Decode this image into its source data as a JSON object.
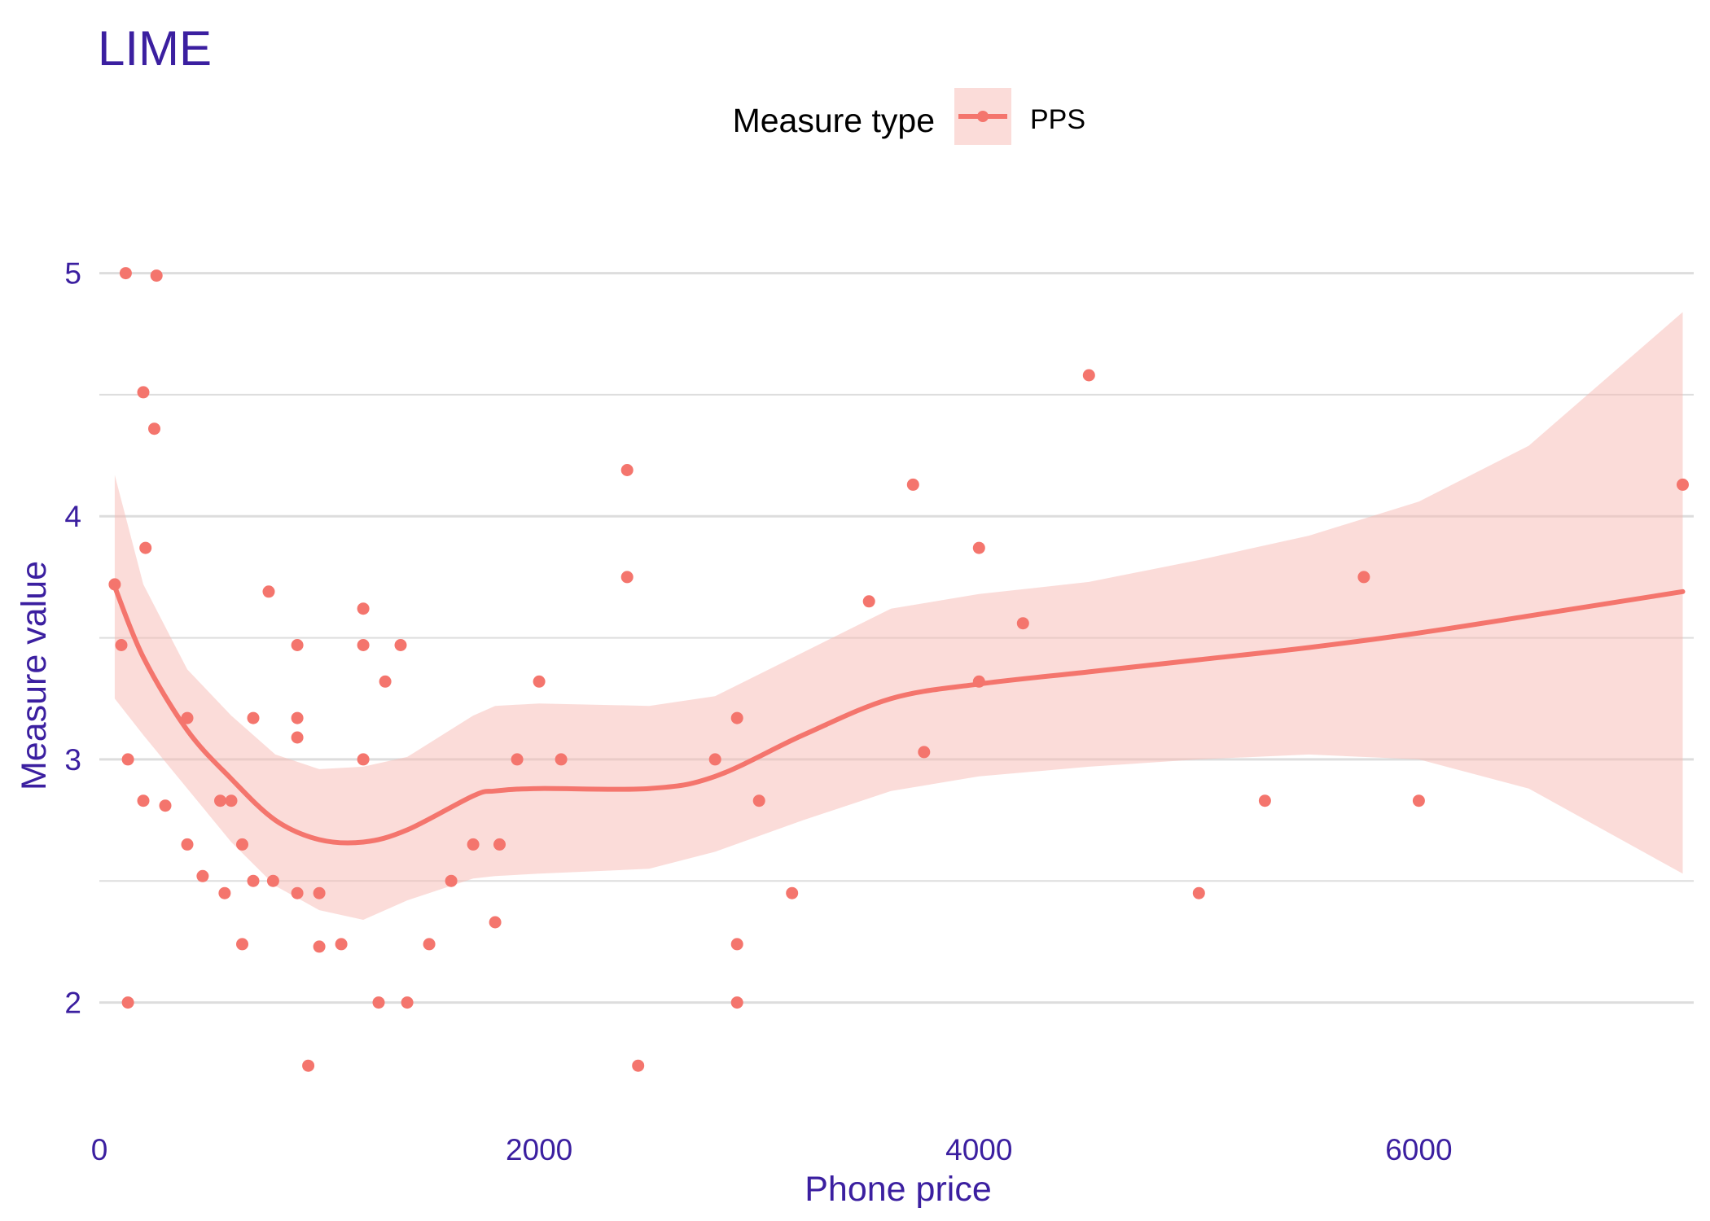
{
  "chart_data": {
    "type": "scatter",
    "title": "LIME",
    "xlabel": "Phone price",
    "ylabel": "Measure value",
    "xlim": [
      0,
      7250
    ],
    "ylim": [
      1.57,
      5.32
    ],
    "x_ticks": [
      0,
      2000,
      4000,
      6000
    ],
    "y_ticks": [
      2,
      3,
      4,
      5
    ],
    "grid": true,
    "legend": {
      "title": "Measure type",
      "position": "top-center",
      "entries": [
        "PPS"
      ]
    },
    "colors": {
      "series": "#f4756d",
      "ribbon": "#f8b9b3",
      "text": "#3b1fa0",
      "grid": "#dddddd"
    },
    "series": [
      {
        "name": "PPS",
        "points": [
          [
            70,
            3.72
          ],
          [
            100,
            3.47
          ],
          [
            120,
            5.0
          ],
          [
            130,
            3.0
          ],
          [
            130,
            2.0
          ],
          [
            200,
            4.51
          ],
          [
            200,
            2.83
          ],
          [
            210,
            3.87
          ],
          [
            250,
            4.36
          ],
          [
            260,
            4.99
          ],
          [
            300,
            2.81
          ],
          [
            400,
            3.17
          ],
          [
            400,
            2.65
          ],
          [
            470,
            2.52
          ],
          [
            550,
            2.83
          ],
          [
            570,
            2.45
          ],
          [
            600,
            2.83
          ],
          [
            650,
            2.65
          ],
          [
            650,
            2.24
          ],
          [
            700,
            3.17
          ],
          [
            700,
            2.5
          ],
          [
            770,
            3.69
          ],
          [
            790,
            2.5
          ],
          [
            900,
            3.47
          ],
          [
            900,
            3.17
          ],
          [
            900,
            3.09
          ],
          [
            900,
            2.45
          ],
          [
            950,
            1.74
          ],
          [
            1000,
            2.45
          ],
          [
            1000,
            2.23
          ],
          [
            1100,
            2.24
          ],
          [
            1200,
            3.62
          ],
          [
            1200,
            3.47
          ],
          [
            1200,
            3.0
          ],
          [
            1270,
            2.0
          ],
          [
            1300,
            3.32
          ],
          [
            1370,
            3.47
          ],
          [
            1400,
            2.0
          ],
          [
            1500,
            2.24
          ],
          [
            1600,
            2.5
          ],
          [
            1700,
            2.65
          ],
          [
            1800,
            2.33
          ],
          [
            1820,
            2.65
          ],
          [
            1900,
            3.0
          ],
          [
            2000,
            3.32
          ],
          [
            2100,
            3.0
          ],
          [
            2400,
            4.19
          ],
          [
            2400,
            3.75
          ],
          [
            2450,
            1.74
          ],
          [
            2800,
            3.0
          ],
          [
            2900,
            3.17
          ],
          [
            2900,
            2.24
          ],
          [
            2900,
            2.0
          ],
          [
            3000,
            2.83
          ],
          [
            3150,
            2.45
          ],
          [
            3500,
            3.65
          ],
          [
            3700,
            4.13
          ],
          [
            3750,
            3.03
          ],
          [
            4000,
            3.87
          ],
          [
            4000,
            3.32
          ],
          [
            4200,
            3.56
          ],
          [
            4500,
            4.58
          ],
          [
            5000,
            2.45
          ],
          [
            5300,
            2.83
          ],
          [
            5750,
            3.75
          ],
          [
            6000,
            2.83
          ],
          [
            7200,
            4.13
          ]
        ],
        "smooth": {
          "x": [
            70,
            200,
            400,
            600,
            800,
            1000,
            1200,
            1400,
            1700,
            1800,
            2000,
            2500,
            2800,
            3200,
            3600,
            4000,
            4500,
            5000,
            5500,
            6000,
            6500,
            7200
          ],
          "y": [
            3.71,
            3.42,
            3.12,
            2.92,
            2.75,
            2.67,
            2.66,
            2.71,
            2.85,
            2.87,
            2.88,
            2.88,
            2.93,
            3.1,
            3.25,
            3.31,
            3.36,
            3.41,
            3.46,
            3.52,
            3.59,
            3.69
          ],
          "lower": [
            3.25,
            3.1,
            2.88,
            2.66,
            2.48,
            2.38,
            2.34,
            2.42,
            2.51,
            2.52,
            2.53,
            2.55,
            2.62,
            2.75,
            2.87,
            2.93,
            2.97,
            3.0,
            3.02,
            3.0,
            2.88,
            2.53
          ],
          "upper": [
            4.17,
            3.72,
            3.37,
            3.18,
            3.02,
            2.96,
            2.97,
            3.01,
            3.18,
            3.22,
            3.23,
            3.22,
            3.26,
            3.44,
            3.62,
            3.68,
            3.73,
            3.82,
            3.92,
            4.06,
            4.29,
            4.84
          ]
        }
      }
    ]
  }
}
